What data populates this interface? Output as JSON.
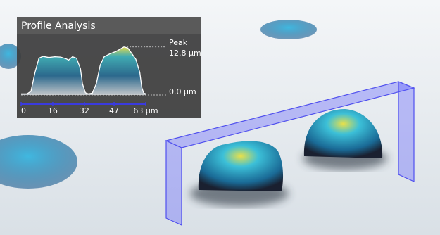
{
  "chart_data": {
    "type": "area",
    "title": "Profile Analysis",
    "x": [
      0,
      3,
      5,
      7,
      9,
      11,
      14,
      17,
      20,
      23,
      24,
      26,
      28,
      30,
      31,
      32.5,
      34,
      36,
      38,
      40,
      42,
      45,
      48,
      50,
      52,
      54,
      56,
      58,
      60,
      61,
      62,
      63
    ],
    "y": [
      0.3,
      0.3,
      1.0,
      6,
      9.8,
      10.3,
      10.0,
      10.2,
      10.1,
      9.6,
      9.3,
      10.2,
      9.8,
      7,
      3,
      0.6,
      0.3,
      0.5,
      3,
      8,
      10.2,
      11,
      11.6,
      12.2,
      12.8,
      12.5,
      11,
      9.5,
      6,
      2,
      0.5,
      0.3
    ],
    "xlim": [
      0,
      63
    ],
    "xticks": [
      0,
      16,
      32,
      47,
      {
        "value": 63,
        "label": "63 µm"
      }
    ],
    "ylim": [
      0,
      15
    ],
    "annotations": [
      {
        "text": "Peak"
      },
      {
        "value": 12.8,
        "label": "12.8 µm"
      },
      {
        "value": 0,
        "label": "0.0 µm"
      }
    ],
    "line_color": "#ffffff",
    "axis_color": "#3a3adf"
  }
}
